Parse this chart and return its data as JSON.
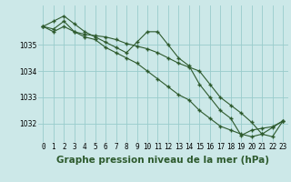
{
  "title": "Graphe pression niveau de la mer (hPa)",
  "bg_color": "#cce8e8",
  "grid_color": "#99cccc",
  "line_color": "#2d5a2d",
  "x": [
    0,
    1,
    2,
    3,
    4,
    5,
    6,
    7,
    8,
    9,
    10,
    11,
    12,
    13,
    14,
    15,
    16,
    17,
    18,
    19,
    20,
    21,
    22,
    23
  ],
  "series1": [
    1035.7,
    1035.9,
    1036.1,
    1035.8,
    1035.5,
    1035.3,
    1035.1,
    1034.9,
    1034.7,
    1035.1,
    1035.5,
    1035.5,
    1035.0,
    1034.5,
    1034.2,
    1033.5,
    1033.0,
    1032.5,
    1032.2,
    1031.55,
    1031.75,
    1031.82,
    1031.88,
    1032.1
  ],
  "series2": [
    1035.7,
    1035.6,
    1035.9,
    1035.5,
    1035.3,
    1035.2,
    1034.9,
    1034.7,
    1034.5,
    1034.3,
    1034.0,
    1033.7,
    1033.4,
    1033.1,
    1032.9,
    1032.5,
    1032.2,
    1031.9,
    1031.75,
    1031.6,
    1031.5,
    1031.6,
    1031.85,
    1032.1
  ],
  "series3": [
    1035.7,
    1035.5,
    1035.7,
    1035.5,
    1035.4,
    1035.35,
    1035.3,
    1035.2,
    1035.05,
    1034.95,
    1034.85,
    1034.7,
    1034.5,
    1034.3,
    1034.15,
    1034.0,
    1033.5,
    1033.0,
    1032.7,
    1032.4,
    1032.05,
    1031.6,
    1031.5,
    1032.1
  ],
  "ylim_min": 1031.3,
  "ylim_max": 1036.5,
  "yticks": [
    1032,
    1033,
    1034,
    1035
  ],
  "title_fontsize": 7.5,
  "tick_fontsize": 5.5
}
